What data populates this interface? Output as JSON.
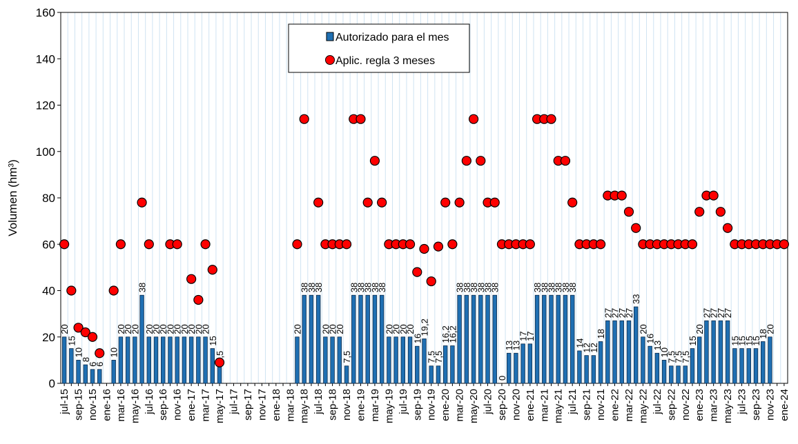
{
  "chart_data": {
    "type": "bar",
    "ylabel": "Volumen (hm³)",
    "ylim": [
      0,
      160
    ],
    "yticks": [
      0,
      20,
      40,
      60,
      80,
      100,
      120,
      140,
      160
    ],
    "grid": true,
    "legend": "top",
    "categories": [
      "jul-15",
      null,
      "sep-15",
      null,
      "nov-15",
      null,
      "ene-16",
      null,
      "mar-16",
      null,
      "may-16",
      null,
      "jul-16",
      null,
      "sep-16",
      null,
      "nov-16",
      null,
      "ene-17",
      null,
      "mar-17",
      null,
      "may-17",
      null,
      "jul-17",
      null,
      "sep-17",
      null,
      "nov-17",
      null,
      "ene-18",
      null,
      "mar-18",
      null,
      "may-18",
      null,
      "jul-18",
      null,
      "sep-18",
      null,
      "nov-18",
      null,
      "ene-19",
      null,
      "mar-19",
      null,
      "may-19",
      null,
      "jul-19",
      null,
      "sep-19",
      null,
      "nov-19",
      null,
      "ene-20",
      null,
      "mar-20",
      null,
      "may-20",
      null,
      "jul-20",
      null,
      "sep-20",
      null,
      "nov-20",
      null,
      "ene-21",
      null,
      "mar-21",
      null,
      "may-21",
      null,
      "jul-21",
      null,
      "sep-21",
      null,
      "nov-21",
      null,
      "ene-22",
      null,
      "mar-22",
      null,
      "may-22",
      null,
      "jul-22",
      null,
      "sep-22",
      null,
      "nov-22",
      null,
      "ene-23",
      null,
      "mar-23",
      null,
      "may-23",
      null,
      "jul-23",
      null,
      "sep-23",
      null,
      "nov-23",
      null,
      "ene-24"
    ],
    "series": [
      {
        "name": "Autorizado para el mes",
        "type": "bar",
        "color": "#1f6fb2",
        "values": [
          20,
          15,
          10,
          8,
          6,
          6,
          null,
          10,
          20,
          20,
          20,
          38,
          20,
          20,
          20,
          20,
          20,
          20,
          20,
          20,
          20,
          15,
          7.5,
          null,
          null,
          null,
          null,
          null,
          null,
          null,
          null,
          null,
          null,
          20,
          38,
          38,
          38,
          20,
          20,
          20,
          7.5,
          38,
          38,
          38,
          38,
          38,
          20,
          20,
          20,
          20,
          16,
          19.2,
          7.5,
          7.5,
          16.2,
          16.2,
          38,
          38,
          38,
          38,
          38,
          38,
          0,
          13,
          13,
          17,
          17,
          38,
          38,
          38,
          38,
          38,
          38,
          14,
          12,
          12,
          18,
          27,
          27,
          27,
          27,
          33,
          20,
          16,
          13,
          10,
          7.5,
          7.5,
          7.5,
          15,
          20,
          27,
          27,
          27,
          27,
          15,
          15,
          15,
          15,
          18,
          20,
          null,
          null
        ],
        "value_labels": [
          "20",
          "15",
          "10",
          "8",
          "6",
          "6",
          null,
          "10",
          "20",
          "20",
          "20",
          "38",
          "20",
          "20",
          "20",
          "20",
          "20",
          "20",
          "20",
          "20",
          "20",
          "15",
          "7,5",
          null,
          null,
          null,
          null,
          null,
          null,
          null,
          null,
          null,
          null,
          "20",
          "38",
          "38",
          "38",
          "20",
          "20",
          "20",
          "7,5",
          "38",
          "38",
          "38",
          "38",
          "38",
          "20",
          "20",
          "20",
          "20",
          "16",
          "19,2",
          "7,5",
          "7,5",
          "16,2",
          "16,2",
          "38",
          "38",
          "38",
          "38",
          "38",
          "38",
          "0",
          "13",
          "13",
          "17",
          "17",
          "38",
          "38",
          "38",
          "38",
          "38",
          "38",
          "14",
          "12",
          "12",
          "18",
          "27",
          "27",
          "27",
          "27",
          "33",
          "20",
          "16",
          "13",
          "10",
          "7,5",
          "7,5",
          "7,5",
          "15",
          "20",
          "27",
          "27",
          "27",
          "27",
          "15",
          "15",
          "15",
          "15",
          "18",
          "20",
          null,
          null
        ]
      },
      {
        "name": "Aplic. regla 3 meses",
        "type": "scatter",
        "color": "#ff0000",
        "values": [
          60,
          40,
          24,
          22,
          20,
          13,
          null,
          40,
          60,
          null,
          null,
          78,
          60,
          null,
          null,
          60,
          60,
          null,
          45,
          36,
          60,
          49,
          9,
          null,
          null,
          null,
          null,
          null,
          null,
          null,
          null,
          null,
          null,
          60,
          114,
          null,
          78,
          60,
          60,
          60,
          60,
          114,
          114,
          78,
          96,
          78,
          60,
          60,
          60,
          60,
          48,
          58,
          44,
          59,
          78,
          60,
          78,
          96,
          114,
          96,
          78,
          78,
          60,
          60,
          60,
          60,
          60,
          114,
          114,
          114,
          96,
          96,
          78,
          60,
          60,
          60,
          60,
          81,
          81,
          81,
          74,
          67,
          60,
          60,
          60,
          60,
          60,
          60,
          60,
          60,
          74,
          81,
          81,
          74,
          67,
          60,
          60,
          60,
          60,
          60,
          60,
          60,
          60
        ]
      }
    ]
  }
}
